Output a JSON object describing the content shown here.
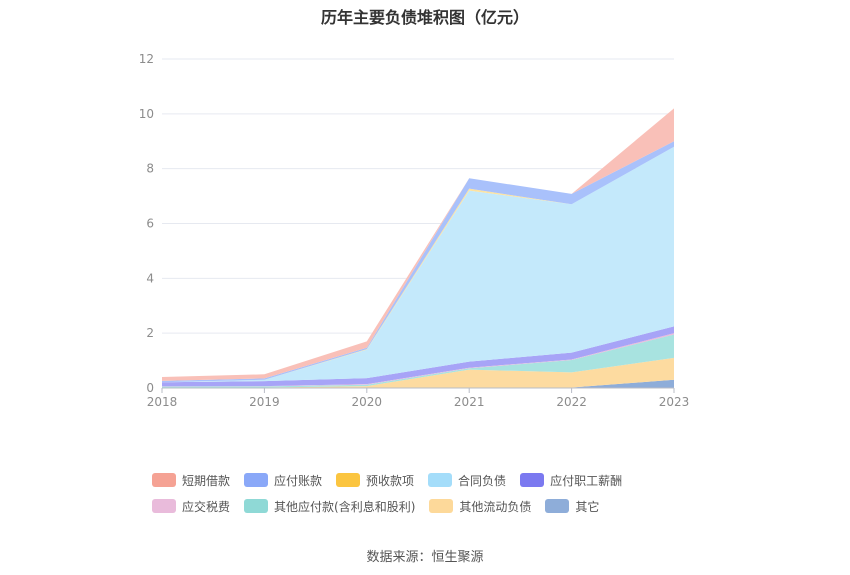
{
  "chart_data": {
    "type": "area",
    "stacked": true,
    "title": "历年主要负债堆积图（亿元）",
    "xlabel": "",
    "ylabel": "",
    "x": [
      "2018",
      "2019",
      "2020",
      "2021",
      "2022",
      "2023"
    ],
    "y_ticks": [
      "0",
      "2",
      "4",
      "6",
      "8",
      "10",
      "12"
    ],
    "ylim": [
      0,
      12
    ],
    "grid": true,
    "legend_position": "bottom",
    "series": [
      {
        "name": "其它",
        "color": "#8eadd9",
        "values": [
          0.02,
          0.02,
          0.02,
          0.02,
          0.02,
          0.3
        ]
      },
      {
        "name": "其他流动负债",
        "color": "#fddba0",
        "values": [
          0.0,
          0.0,
          0.05,
          0.65,
          0.55,
          0.8
        ]
      },
      {
        "name": "其他应付款(含利息和股利)",
        "color": "#a8e3e0",
        "values": [
          0.03,
          0.04,
          0.05,
          0.05,
          0.45,
          0.85
        ]
      },
      {
        "name": "应交税费",
        "color": "#e9bbdb",
        "values": [
          0.01,
          0.01,
          0.02,
          0.02,
          0.02,
          0.05
        ]
      },
      {
        "name": "应付职工薪酬",
        "color": "#a7a4f7",
        "values": [
          0.15,
          0.18,
          0.22,
          0.22,
          0.25,
          0.25
        ]
      },
      {
        "name": "合同负债",
        "color": "#c4e9fb",
        "values": [
          0.0,
          0.05,
          1.04,
          6.24,
          5.41,
          6.55
        ]
      },
      {
        "name": "预收款项",
        "color": "#fde3a1",
        "values": [
          0.0,
          0.0,
          0.02,
          0.07,
          0.0,
          0.0
        ]
      },
      {
        "name": "应付账款",
        "color": "#a9c1fb",
        "values": [
          0.05,
          0.05,
          0.05,
          0.38,
          0.38,
          0.2
        ]
      },
      {
        "name": "短期借款",
        "color": "#f9c0b8",
        "values": [
          0.14,
          0.15,
          0.23,
          0.0,
          0.0,
          1.2
        ]
      }
    ],
    "legend": [
      {
        "name": "短期借款",
        "color": "#f5a294"
      },
      {
        "name": "应付账款",
        "color": "#8aa8f8"
      },
      {
        "name": "预收款项",
        "color": "#fbc540"
      },
      {
        "name": "合同负债",
        "color": "#a4ddfa"
      },
      {
        "name": "应付职工薪酬",
        "color": "#7b79f0"
      },
      {
        "name": "应交税费",
        "color": "#e9bbdb"
      },
      {
        "name": "其他应付款(含利息和股利)",
        "color": "#8fd9d6"
      },
      {
        "name": "其他流动负债",
        "color": "#fdd99a"
      },
      {
        "name": "其它",
        "color": "#8eadd9"
      }
    ]
  },
  "source": "数据来源：恒生聚源"
}
